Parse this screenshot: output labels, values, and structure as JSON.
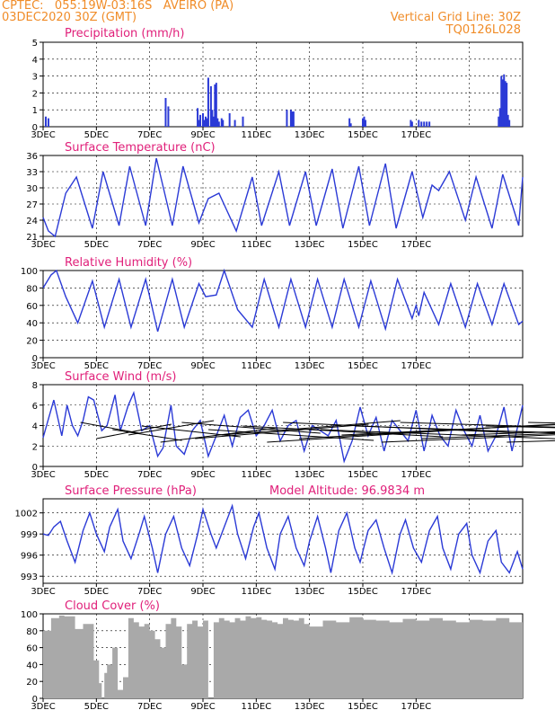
{
  "header": {
    "line1": "CPTEC:   055:19W-03:16S   AVEIRO (PA)",
    "line2": "03DEC2020 30Z (GMT)",
    "right1": "Vertical Grid Line: 30Z",
    "right2": "TQ0126L028"
  },
  "colors": {
    "header": "#f08c28",
    "title": "#e0207a",
    "series": "#2b3ad6",
    "cloud": "#a9a9a9",
    "grid": "#000000"
  },
  "chart_data": [
    {
      "type": "bar",
      "title": "Precipitation (mm/h)",
      "ylim": [
        0,
        5
      ],
      "yticks": [
        0,
        1,
        2,
        3,
        4,
        5
      ],
      "xlabels": [
        "3DEC",
        "5DEC",
        "7DEC",
        "9DEC",
        "11DEC",
        "13DEC",
        "15DEC",
        "17DEC"
      ],
      "x": [
        0.1,
        0.2,
        4.6,
        4.7,
        5.8,
        5.85,
        5.9,
        6.0,
        6.05,
        6.1,
        6.15,
        6.2,
        6.3,
        6.35,
        6.4,
        6.45,
        6.5,
        6.55,
        6.6,
        6.7,
        6.75,
        7.0,
        7.2,
        7.5,
        9.15,
        9.3,
        9.35,
        9.4,
        11.5,
        11.55,
        12.0,
        12.05,
        12.1,
        13.8,
        13.85,
        14.1,
        14.2,
        14.3,
        14.4,
        14.5,
        17.1,
        17.15,
        17.2,
        17.25,
        17.3,
        17.35,
        17.4,
        17.45,
        17.5
      ],
      "values": [
        0.6,
        0.5,
        1.7,
        1.2,
        1.1,
        0.4,
        0.7,
        0.8,
        0.4,
        0.6,
        0.5,
        2.9,
        2.4,
        1.0,
        0.6,
        2.5,
        2.6,
        0.5,
        0.3,
        0.5,
        0.4,
        0.8,
        0.4,
        0.6,
        1.0,
        1.0,
        0.9,
        0.9,
        0.5,
        0.2,
        0.5,
        0.6,
        0.4,
        0.4,
        0.3,
        0.4,
        0.3,
        0.3,
        0.3,
        0.3,
        0.6,
        1.1,
        3.0,
        2.8,
        3.1,
        2.7,
        2.6,
        0.7,
        0.4
      ]
    },
    {
      "type": "line",
      "title": "Surface Temperature (nC)",
      "ylim": [
        21,
        36
      ],
      "yticks": [
        21,
        24,
        27,
        30,
        33,
        36
      ],
      "xlabels": [
        "3DEC",
        "5DEC",
        "7DEC",
        "9DEC",
        "11DEC",
        "13DEC",
        "15DEC",
        "17DEC"
      ],
      "x": [
        0,
        0.2,
        0.45,
        0.85,
        1.25,
        1.85,
        2.25,
        2.85,
        3.25,
        3.85,
        4.25,
        4.85,
        5.25,
        5.85,
        6.2,
        6.6,
        7.25,
        7.85,
        8.2,
        8.85,
        9.25,
        9.85,
        10.25,
        10.85,
        11.25,
        11.85,
        12.25,
        12.85,
        13.25,
        13.85,
        14.25,
        14.6,
        14.85,
        15.25,
        15.85,
        16.25,
        16.85,
        17.25,
        17.85,
        18.0
      ],
      "values": [
        24.5,
        22,
        21,
        29,
        32,
        22.5,
        33,
        23,
        34,
        23,
        35.5,
        23,
        34,
        23.5,
        28,
        29,
        22,
        32,
        23,
        33,
        23,
        33,
        23,
        33.5,
        22.5,
        34,
        23,
        34.5,
        22.5,
        33,
        24.5,
        30.5,
        29.5,
        33,
        24,
        32,
        22.5,
        32.5,
        23,
        32
      ]
    },
    {
      "type": "line",
      "title": "Relative Humidity (%)",
      "ylim": [
        0,
        100
      ],
      "yticks": [
        0,
        20,
        40,
        60,
        80,
        100
      ],
      "xlabels": [
        "3DEC",
        "5DEC",
        "7DEC",
        "9DEC",
        "11DEC",
        "13DEC",
        "15DEC",
        "17DEC"
      ],
      "x": [
        0,
        0.3,
        0.5,
        0.85,
        1.3,
        1.85,
        2.3,
        2.85,
        3.3,
        3.85,
        4.3,
        4.85,
        5.3,
        5.85,
        6.1,
        6.5,
        6.8,
        7.3,
        7.85,
        8.3,
        8.85,
        9.3,
        9.85,
        10.3,
        10.85,
        11.3,
        11.85,
        12.3,
        12.85,
        13.3,
        13.85,
        14.0,
        14.1,
        14.3,
        14.85,
        15.3,
        15.85,
        16.3,
        16.85,
        17.3,
        17.85,
        18.0
      ],
      "values": [
        80,
        95,
        100,
        70,
        40,
        88,
        35,
        90,
        35,
        90,
        30,
        90,
        35,
        85,
        70,
        72,
        100,
        55,
        35,
        90,
        35,
        90,
        35,
        90,
        35,
        90,
        35,
        88,
        33,
        90,
        45,
        60,
        48,
        75,
        38,
        85,
        35,
        85,
        38,
        85,
        38,
        42
      ]
    },
    {
      "type": "line",
      "title": "Surface Wind (m/s)",
      "ylim": [
        0,
        8
      ],
      "yticks": [
        0,
        2,
        4,
        6,
        8
      ],
      "xlabels": [
        "3DEC",
        "5DEC",
        "7DEC",
        "9DEC",
        "11DEC",
        "13DEC",
        "15DEC",
        "17DEC"
      ],
      "x": [
        0,
        0.4,
        0.7,
        0.9,
        1.1,
        1.3,
        1.5,
        1.7,
        1.9,
        2.2,
        2.4,
        2.7,
        2.9,
        3.2,
        3.4,
        3.7,
        4.0,
        4.3,
        4.5,
        4.8,
        5.0,
        5.3,
        5.6,
        5.9,
        6.2,
        6.5,
        6.8,
        7.1,
        7.4,
        7.7,
        8.0,
        8.3,
        8.6,
        8.9,
        9.2,
        9.5,
        9.8,
        10.1,
        10.4,
        10.7,
        11.0,
        11.3,
        11.6,
        11.9,
        12.2,
        12.5,
        12.8,
        13.1,
        13.4,
        13.7,
        14.0,
        14.3,
        14.6,
        14.9,
        15.2,
        15.5,
        15.8,
        16.1,
        16.4,
        16.7,
        17.0,
        17.3,
        17.6,
        18.0
      ],
      "values": [
        2.8,
        6.5,
        3.0,
        6.0,
        4.0,
        3.0,
        4.5,
        6.8,
        6.5,
        3.5,
        4.0,
        7.0,
        3.5,
        6.0,
        7.2,
        3.5,
        4.0,
        1.0,
        1.8,
        6.0,
        2.0,
        1.2,
        3.5,
        4.5,
        1.0,
        3.0,
        5.0,
        2.0,
        4.8,
        5.5,
        3.0,
        4.0,
        5.5,
        2.5,
        4.0,
        4.5,
        1.5,
        4.0,
        3.5,
        3.0,
        4.5,
        0.5,
        2.5,
        5.8,
        3.0,
        4.8,
        1.5,
        4.5,
        3.5,
        2.5,
        5.5,
        1.5,
        5.0,
        3.0,
        2.0,
        5.5,
        3.5,
        2.0,
        5.0,
        1.5,
        3.0,
        5.8,
        1.5,
        6.0
      ]
    },
    {
      "type": "line",
      "title": "Surface Pressure (hPa)",
      "annotation": "Model Altitude: 96.9834  m",
      "ylim": [
        992,
        1004
      ],
      "yticks": [
        993,
        996,
        999,
        1002
      ],
      "xlabels": [
        "3DEC",
        "5DEC",
        "7DEC",
        "9DEC",
        "11DEC",
        "13DEC",
        "15DEC",
        "17DEC"
      ],
      "x": [
        0,
        0.2,
        0.4,
        0.65,
        0.9,
        1.2,
        1.5,
        1.75,
        2.0,
        2.3,
        2.5,
        2.8,
        3.0,
        3.3,
        3.6,
        3.8,
        4.1,
        4.3,
        4.6,
        4.9,
        5.2,
        5.5,
        5.8,
        6.0,
        6.3,
        6.5,
        6.8,
        7.1,
        7.3,
        7.6,
        7.9,
        8.1,
        8.4,
        8.7,
        8.9,
        9.2,
        9.5,
        9.8,
        10.0,
        10.3,
        10.6,
        10.8,
        11.1,
        11.4,
        11.7,
        11.9,
        12.2,
        12.5,
        12.8,
        13.1,
        13.4,
        13.6,
        13.9,
        14.2,
        14.5,
        14.8,
        15.0,
        15.3,
        15.6,
        15.9,
        16.1,
        16.4,
        16.7,
        17.0,
        17.2,
        17.5,
        17.8,
        18.0
      ],
      "values": [
        999,
        998.8,
        1000,
        1000.8,
        998,
        995,
        999.5,
        1002,
        999,
        996.5,
        1000,
        1002.5,
        998,
        995.5,
        999,
        1001.5,
        997,
        993.5,
        999,
        1001.5,
        997,
        994.5,
        999,
        1002.5,
        999,
        997,
        1000,
        1003,
        999,
        995.5,
        1000,
        1002,
        997,
        994,
        999,
        1001.5,
        997,
        994.5,
        998,
        1001.5,
        997,
        993.5,
        999.5,
        1002,
        997,
        995,
        999.5,
        1001,
        997,
        993.5,
        999,
        1001,
        997,
        995,
        999.5,
        1001.5,
        997,
        994,
        999,
        1000.5,
        996,
        993.5,
        998,
        999.5,
        995,
        993.5,
        996.5,
        994
      ]
    },
    {
      "type": "area",
      "title": "Cloud Cover (%)",
      "ylim": [
        0,
        100
      ],
      "yticks": [
        0,
        20,
        40,
        60,
        80,
        100
      ],
      "xlabels": [
        "3DEC",
        "5DEC",
        "7DEC",
        "9DEC",
        "11DEC",
        "13DEC",
        "15DEC",
        "17DEC"
      ],
      "x": [
        0,
        0.3,
        0.6,
        0.8,
        1.2,
        1.5,
        1.9,
        2.1,
        2.2,
        2.3,
        2.4,
        2.6,
        2.8,
        3.0,
        3.2,
        3.4,
        3.6,
        3.8,
        4.0,
        4.2,
        4.4,
        4.6,
        4.8,
        5.0,
        5.2,
        5.4,
        5.6,
        5.8,
        6.0,
        6.2,
        6.4,
        6.6,
        6.8,
        7.0,
        7.2,
        7.4,
        7.6,
        7.8,
        8.0,
        8.2,
        8.4,
        8.6,
        8.8,
        9.0,
        9.2,
        9.4,
        9.6,
        9.8,
        10.0,
        10.5,
        11.0,
        11.5,
        12.0,
        12.5,
        13.0,
        13.5,
        14.0,
        14.5,
        15.0,
        15.5,
        16.0,
        16.5,
        17.0,
        17.5,
        18.0
      ],
      "values": [
        80,
        95,
        98,
        97,
        82,
        88,
        45,
        18,
        0,
        30,
        40,
        60,
        10,
        25,
        95,
        90,
        85,
        88,
        80,
        70,
        60,
        88,
        95,
        85,
        40,
        88,
        92,
        85,
        92,
        0,
        90,
        95,
        92,
        90,
        95,
        92,
        97,
        95,
        96,
        93,
        92,
        90,
        88,
        95,
        93,
        92,
        95,
        88,
        85,
        92,
        90,
        96,
        93,
        92,
        90,
        94,
        92,
        95,
        92,
        90,
        93,
        92,
        95,
        90,
        92
      ]
    }
  ]
}
